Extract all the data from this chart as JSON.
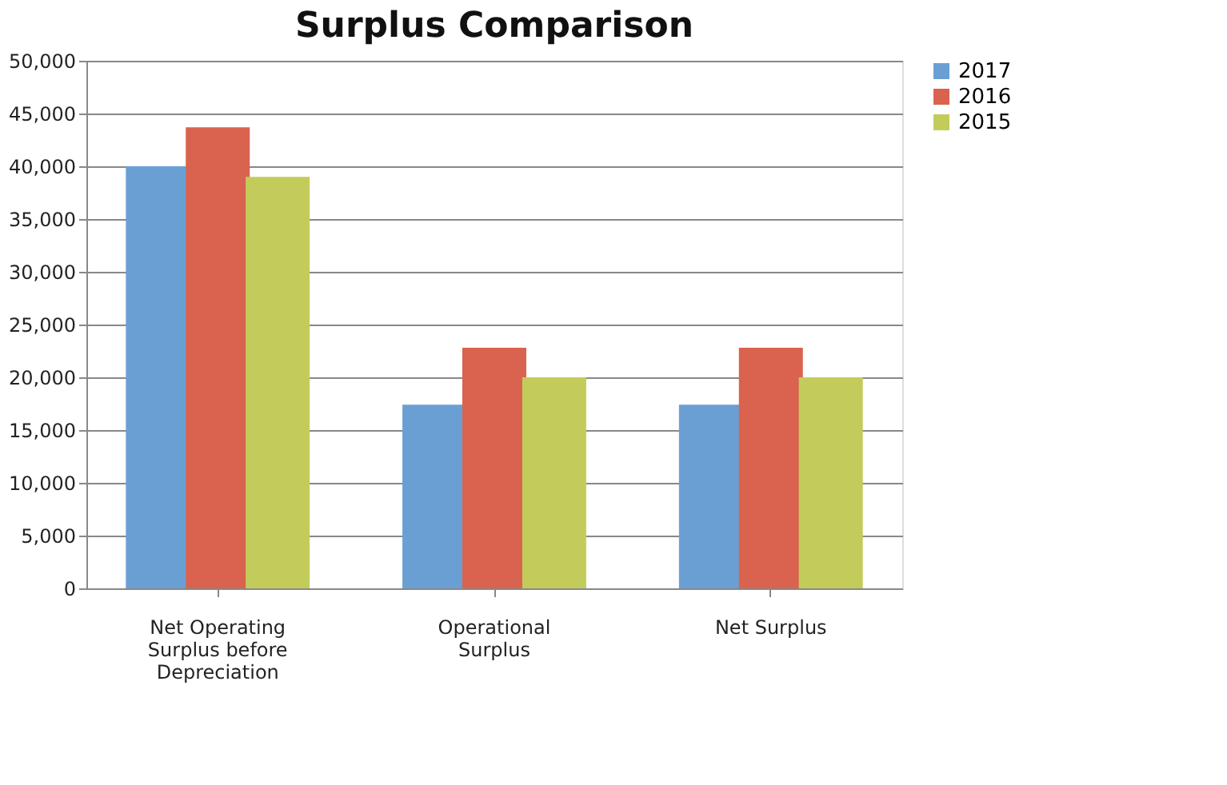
{
  "chart_data": {
    "type": "bar",
    "title": "Surplus Comparison",
    "categories": [
      "Net Operating Surplus before Depreciation",
      "Operational Surplus",
      "Net Surplus"
    ],
    "series": [
      {
        "name": "2017",
        "color": "#6a9fd4",
        "values": [
          40000,
          17400,
          17400
        ]
      },
      {
        "name": "2016",
        "color": "#d9634f",
        "values": [
          43700,
          22800,
          22800
        ]
      },
      {
        "name": "2015",
        "color": "#c3cc5a",
        "values": [
          39000,
          20000,
          20000
        ]
      }
    ],
    "ylim": [
      0,
      50000
    ],
    "yticks": [
      0,
      {
        "value": 5000,
        "label": "5,000"
      },
      {
        "value": 10000,
        "label": "10,000"
      },
      {
        "value": 15000,
        "label": "15,000"
      },
      {
        "value": 20000,
        "label": "20,000"
      },
      {
        "value": 25000,
        "label": "25,000"
      },
      {
        "value": 30000,
        "label": "30,000"
      },
      {
        "value": 35000,
        "label": "35,000"
      },
      {
        "value": 40000,
        "label": "40,000"
      },
      {
        "value": 45000,
        "label": "45,000"
      },
      {
        "value": 50000,
        "label": "50,000"
      }
    ],
    "grid": "y",
    "legend": "right"
  }
}
